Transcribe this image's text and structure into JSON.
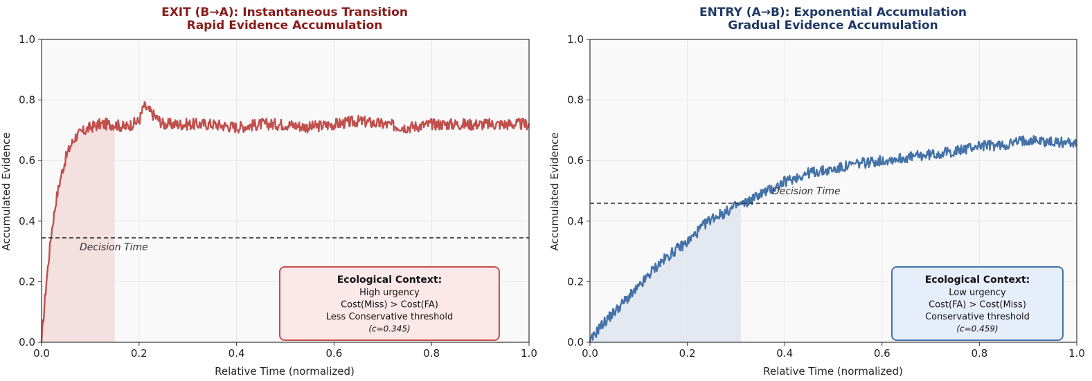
{
  "chart_data": [
    {
      "type": "line",
      "title_lines": [
        "EXIT (B→A): Instantaneous Transition",
        "Rapid Evidence Accumulation"
      ],
      "title_color": "#8b1a1a",
      "xlabel": "Relative Time (normalized)",
      "ylabel": "Accumulated Evidence",
      "xlim": [
        0,
        1
      ],
      "ylim": [
        0,
        1
      ],
      "x_ticks": [
        "0.0",
        "0.2",
        "0.4",
        "0.6",
        "0.8",
        "1.0"
      ],
      "y_ticks": [
        "0.0",
        "0.2",
        "0.4",
        "0.6",
        "0.8",
        "1.0"
      ],
      "grid": true,
      "series": [
        {
          "color": "#c0504d",
          "x": [
            0,
            0.01,
            0.02,
            0.03,
            0.04,
            0.05,
            0.06,
            0.07,
            0.08,
            0.09,
            0.1,
            0.12,
            0.14,
            0.15,
            0.17,
            0.2,
            0.21,
            0.25,
            0.3,
            0.35,
            0.4,
            0.45,
            0.5,
            0.55,
            0.6,
            0.65,
            0.7,
            0.75,
            0.8,
            0.85,
            0.9,
            0.95,
            1.0
          ],
          "y": [
            0.0,
            0.2,
            0.36,
            0.47,
            0.55,
            0.61,
            0.65,
            0.68,
            0.69,
            0.7,
            0.71,
            0.72,
            0.72,
            0.72,
            0.71,
            0.73,
            0.78,
            0.72,
            0.72,
            0.72,
            0.71,
            0.72,
            0.72,
            0.71,
            0.72,
            0.73,
            0.72,
            0.71,
            0.72,
            0.72,
            0.72,
            0.72,
            0.72
          ],
          "noise": 0.012
        }
      ],
      "threshold": 0.345,
      "threshold_label": "Decision Time",
      "decision_time": 0.15,
      "shade_color": "#f2dcdb",
      "context_box": {
        "title": "Ecological Context:",
        "lines": [
          "High urgency",
          "Cost(Miss) > Cost(FA)",
          "Less Conservative threshold"
        ],
        "note": "(c=0.345)",
        "fill": "#fce8e8",
        "stroke": "#c0504d"
      }
    },
    {
      "type": "line",
      "title_lines": [
        "ENTRY (A→B): Exponential Accumulation",
        "Gradual Evidence Accumulation"
      ],
      "title_color": "#1f3864",
      "xlabel": "Relative Time (normalized)",
      "ylabel": "Accumulated Evidence",
      "xlim": [
        0,
        1
      ],
      "ylim": [
        0,
        1
      ],
      "x_ticks": [
        "0.0",
        "0.2",
        "0.4",
        "0.6",
        "0.8",
        "1.0"
      ],
      "y_ticks": [
        "0.0",
        "0.2",
        "0.4",
        "0.6",
        "0.8",
        "1.0"
      ],
      "grid": true,
      "series": [
        {
          "color": "#4472a8",
          "x": [
            0,
            0.02,
            0.05,
            0.08,
            0.1,
            0.13,
            0.15,
            0.18,
            0.2,
            0.23,
            0.25,
            0.28,
            0.3,
            0.32,
            0.35,
            0.38,
            0.4,
            0.45,
            0.5,
            0.55,
            0.6,
            0.65,
            0.7,
            0.75,
            0.8,
            0.85,
            0.9,
            0.95,
            1.0
          ],
          "y": [
            0.0,
            0.05,
            0.1,
            0.15,
            0.18,
            0.24,
            0.27,
            0.31,
            0.33,
            0.38,
            0.41,
            0.43,
            0.45,
            0.46,
            0.49,
            0.51,
            0.53,
            0.56,
            0.57,
            0.59,
            0.6,
            0.61,
            0.62,
            0.63,
            0.65,
            0.65,
            0.67,
            0.66,
            0.66
          ],
          "noise": 0.011
        }
      ],
      "threshold": 0.459,
      "threshold_label": "Decision Time",
      "decision_time": 0.31,
      "shade_color": "#dfe5f0",
      "context_box": {
        "title": "Ecological Context:",
        "lines": [
          "Low urgency",
          "Cost(FA) > Cost(Miss)",
          "Conservative threshold"
        ],
        "note": "(c=0.459)",
        "fill": "#e6eefa",
        "stroke": "#4472a8"
      }
    }
  ]
}
